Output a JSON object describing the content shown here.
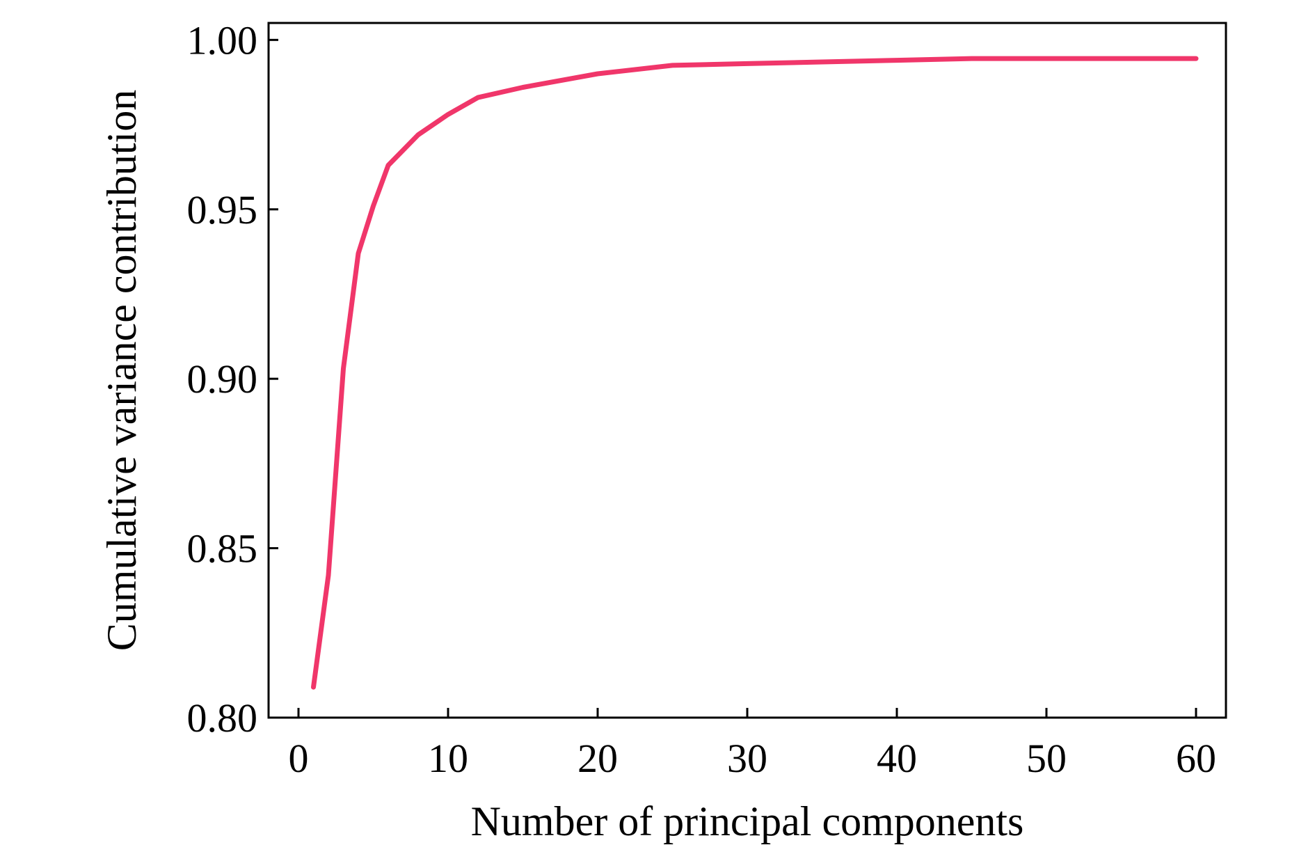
{
  "chart_data": {
    "type": "line",
    "xlabel": "Number of principal components",
    "ylabel": "Cumulative variance contribution",
    "xlim": [
      -2,
      62
    ],
    "ylim": [
      0.8,
      1.005
    ],
    "xticks": [
      0,
      10,
      20,
      30,
      40,
      50,
      60
    ],
    "yticks": [
      0.8,
      0.85,
      0.9,
      0.95,
      1.0
    ],
    "xtick_labels": [
      "0",
      "10",
      "20",
      "30",
      "40",
      "50",
      "60"
    ],
    "ytick_labels": [
      "0.80",
      "0.85",
      "0.90",
      "0.95",
      "1.00"
    ],
    "grid": false,
    "series": [
      {
        "color": "#f0366a",
        "x": [
          1,
          2,
          3,
          4,
          5,
          6,
          8,
          10,
          12,
          15,
          20,
          25,
          30,
          35,
          40,
          45,
          50,
          55,
          60
        ],
        "y": [
          0.809,
          0.842,
          0.903,
          0.937,
          0.951,
          0.963,
          0.972,
          0.978,
          0.983,
          0.986,
          0.99,
          0.9925,
          0.993,
          0.9935,
          0.994,
          0.9945,
          0.9945,
          0.9945,
          0.9945
        ]
      }
    ]
  }
}
